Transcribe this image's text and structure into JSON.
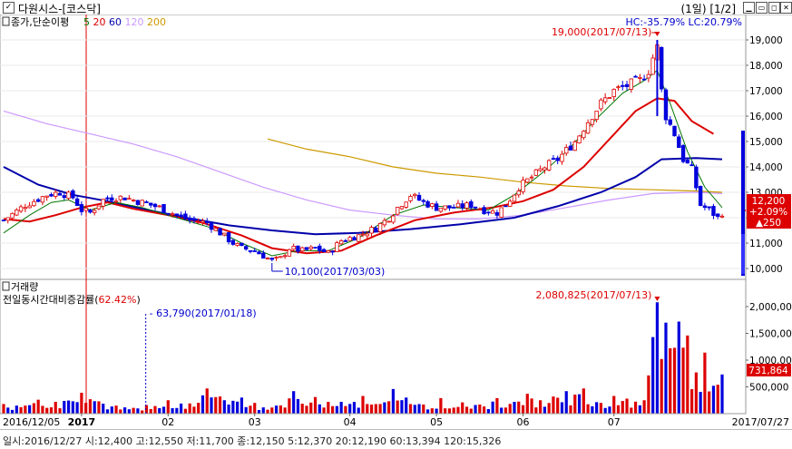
{
  "window": {
    "title": "다원시스-[코스닥]",
    "page_indicator": "(1일) [1/2]",
    "checkbox_mark": "✓"
  },
  "price_panel": {
    "legend_prefix": "종가,단순이평",
    "ma_labels": [
      {
        "text": "5",
        "color": "#007700"
      },
      {
        "text": "20",
        "color": "#dd0000"
      },
      {
        "text": "60",
        "color": "#0000aa"
      },
      {
        "text": "120",
        "color": "#cc99ff"
      },
      {
        "text": "200",
        "color": "#cc9900"
      }
    ],
    "hc_lc": "HC:-35.79%  LC:20.79%",
    "high_annotation": "19,000(2017/07/13)",
    "low_annotation": "10,100(2017/03/03)",
    "last_price": "12,200",
    "last_change_pct": "+2.09%",
    "last_change_amt": "▲250",
    "y_ticks": [
      "19,000",
      "18,000",
      "17,000",
      "16,000",
      "15,000",
      "14,000",
      "13,000",
      "12,000",
      "11,000",
      "10,000"
    ]
  },
  "volume_panel": {
    "title": "거래량",
    "subtitle": "전일동시간대비증감률",
    "subtitle_value": "62.42%",
    "high_annotation": "2,080,825(2017/07/13)",
    "low_annotation": "63,790(2017/01/18)",
    "last_volume": "731,864",
    "y_ticks": [
      "2,000,000",
      "1,500,000",
      "1,000,000",
      "500,000"
    ]
  },
  "x_axis": {
    "start_label": "2016/12/05",
    "end_label": "2017/07/27",
    "ticks": [
      "2017",
      "02",
      "03",
      "04",
      "05",
      "06",
      "07"
    ]
  },
  "status_bar": {
    "text": "일시:2016/12/27 시:12,400 고:12,550 저:11,700 종:12,150 5:12,370 20:12,190 60:13,394 120:15,326"
  },
  "colors": {
    "up": "#dd0000",
    "down": "#0000dd",
    "ma5": "#007700",
    "ma20": "#dd0000",
    "ma60": "#0000aa",
    "ma120": "#cc99ff",
    "ma200": "#cc9900"
  },
  "chart_data": {
    "type": "candlestick",
    "date_range": [
      "2016/12/05",
      "2017/07/27"
    ],
    "price_ylim": [
      10000,
      19000
    ],
    "volume_ylim": [
      0,
      2000000
    ],
    "close_path": [
      [
        0,
        11900
      ],
      [
        5,
        12500
      ],
      [
        10,
        12900
      ],
      [
        13,
        13000
      ],
      [
        16,
        12800
      ],
      [
        18,
        12300
      ],
      [
        20,
        12200
      ],
      [
        23,
        12700
      ],
      [
        25,
        12800
      ],
      [
        28,
        12800
      ],
      [
        32,
        12600
      ],
      [
        36,
        12400
      ],
      [
        40,
        12100
      ],
      [
        43,
        11900
      ],
      [
        47,
        11800
      ],
      [
        50,
        11400
      ],
      [
        53,
        11000
      ],
      [
        55,
        10800
      ],
      [
        58,
        10700
      ],
      [
        60,
        10500
      ],
      [
        62,
        10300
      ],
      [
        64,
        10400
      ],
      [
        66,
        10800
      ],
      [
        69,
        10700
      ],
      [
        72,
        10800
      ],
      [
        75,
        10600
      ],
      [
        78,
        11100
      ],
      [
        82,
        11300
      ],
      [
        86,
        11600
      ],
      [
        89,
        12000
      ],
      [
        91,
        12400
      ],
      [
        94,
        12900
      ],
      [
        97,
        12600
      ],
      [
        100,
        12400
      ],
      [
        104,
        12400
      ],
      [
        108,
        12500
      ],
      [
        111,
        12300
      ],
      [
        114,
        12200
      ],
      [
        116,
        12500
      ],
      [
        119,
        13200
      ],
      [
        122,
        13600
      ],
      [
        125,
        14000
      ],
      [
        128,
        14300
      ],
      [
        132,
        15000
      ],
      [
        135,
        15800
      ],
      [
        138,
        16500
      ],
      [
        141,
        17000
      ],
      [
        144,
        17200
      ],
      [
        147,
        17400
      ],
      [
        149,
        17800
      ],
      [
        150,
        18300
      ],
      [
        151,
        18700
      ],
      [
        152,
        17000
      ],
      [
        153,
        16000
      ],
      [
        155,
        15300
      ],
      [
        157,
        14300
      ],
      [
        159,
        13900
      ],
      [
        161,
        12500
      ],
      [
        163,
        12300
      ],
      [
        165,
        12000
      ],
      [
        166,
        12200
      ]
    ],
    "ma5_path": [
      [
        0,
        11400
      ],
      [
        6,
        12100
      ],
      [
        11,
        12600
      ],
      [
        15,
        12700
      ],
      [
        20,
        12300
      ],
      [
        26,
        12600
      ],
      [
        32,
        12400
      ],
      [
        40,
        12000
      ],
      [
        48,
        11600
      ],
      [
        55,
        11000
      ],
      [
        62,
        10500
      ],
      [
        68,
        10700
      ],
      [
        75,
        10700
      ],
      [
        82,
        11200
      ],
      [
        90,
        12100
      ],
      [
        97,
        12500
      ],
      [
        104,
        12400
      ],
      [
        112,
        12300
      ],
      [
        118,
        12900
      ],
      [
        124,
        13700
      ],
      [
        130,
        14600
      ],
      [
        137,
        15900
      ],
      [
        143,
        16900
      ],
      [
        148,
        17400
      ],
      [
        151,
        17800
      ],
      [
        154,
        16500
      ],
      [
        158,
        14600
      ],
      [
        162,
        13200
      ],
      [
        166,
        12400
      ]
    ],
    "ma20_path": [
      [
        0,
        11950
      ],
      [
        6,
        11850
      ],
      [
        12,
        12100
      ],
      [
        18,
        12400
      ],
      [
        24,
        12600
      ],
      [
        30,
        12350
      ],
      [
        38,
        12100
      ],
      [
        46,
        11800
      ],
      [
        55,
        11300
      ],
      [
        62,
        10800
      ],
      [
        70,
        10600
      ],
      [
        78,
        10700
      ],
      [
        86,
        11300
      ],
      [
        95,
        11900
      ],
      [
        104,
        12200
      ],
      [
        113,
        12400
      ],
      [
        120,
        12650
      ],
      [
        127,
        13100
      ],
      [
        134,
        14000
      ],
      [
        140,
        15100
      ],
      [
        146,
        16200
      ],
      [
        151,
        16700
      ],
      [
        155,
        16600
      ],
      [
        159,
        15800
      ],
      [
        164,
        15300
      ]
    ],
    "ma60_path": [
      [
        0,
        14000
      ],
      [
        8,
        13300
      ],
      [
        16,
        12900
      ],
      [
        24,
        12650
      ],
      [
        32,
        12350
      ],
      [
        42,
        12000
      ],
      [
        52,
        11700
      ],
      [
        62,
        11500
      ],
      [
        72,
        11350
      ],
      [
        82,
        11400
      ],
      [
        94,
        11550
      ],
      [
        106,
        11750
      ],
      [
        118,
        12000
      ],
      [
        128,
        12450
      ],
      [
        138,
        13000
      ],
      [
        146,
        13600
      ],
      [
        152,
        14300
      ],
      [
        160,
        14350
      ],
      [
        166,
        14300
      ]
    ],
    "ma120_path": [
      [
        0,
        16200
      ],
      [
        10,
        15700
      ],
      [
        20,
        15300
      ],
      [
        30,
        14900
      ],
      [
        40,
        14400
      ],
      [
        50,
        13800
      ],
      [
        60,
        13200
      ],
      [
        70,
        12700
      ],
      [
        80,
        12300
      ],
      [
        90,
        12100
      ],
      [
        100,
        11950
      ],
      [
        110,
        11950
      ],
      [
        120,
        12100
      ],
      [
        130,
        12400
      ],
      [
        140,
        12700
      ],
      [
        150,
        12950
      ],
      [
        160,
        13000
      ],
      [
        166,
        12950
      ]
    ],
    "ma200_path": [
      [
        61,
        15100
      ],
      [
        70,
        14700
      ],
      [
        80,
        14400
      ],
      [
        90,
        14000
      ],
      [
        100,
        13750
      ],
      [
        110,
        13600
      ],
      [
        120,
        13400
      ],
      [
        130,
        13250
      ],
      [
        140,
        13150
      ],
      [
        150,
        13100
      ],
      [
        160,
        13050
      ],
      [
        166,
        13000
      ]
    ],
    "high": {
      "index": 151,
      "price": 19000,
      "date": "2017/07/13"
    },
    "low": {
      "index": 62,
      "price": 10100,
      "date": "2017/03/03"
    },
    "last": {
      "close": 12200,
      "change_pct": 2.09,
      "change": 250,
      "volume": 731864
    },
    "volume_peak": {
      "index": 151,
      "volume": 2080825,
      "date": "2017/07/13"
    },
    "volume_low": {
      "index": 32,
      "volume": 63790,
      "date": "2017/01/18"
    },
    "volume_spikes": [
      [
        0,
        180000
      ],
      [
        3,
        150000
      ],
      [
        8,
        260000
      ],
      [
        12,
        220000
      ],
      [
        18,
        390000
      ],
      [
        22,
        230000
      ],
      [
        26,
        150000
      ],
      [
        33,
        160000
      ],
      [
        38,
        250000
      ],
      [
        43,
        190000
      ],
      [
        47,
        470000
      ],
      [
        50,
        320000
      ],
      [
        53,
        240000
      ],
      [
        55,
        300000
      ],
      [
        58,
        200000
      ],
      [
        63,
        150000
      ],
      [
        67,
        420000
      ],
      [
        72,
        310000
      ],
      [
        78,
        220000
      ],
      [
        83,
        330000
      ],
      [
        87,
        180000
      ],
      [
        90,
        460000
      ],
      [
        93,
        300000
      ],
      [
        97,
        170000
      ],
      [
        101,
        290000
      ],
      [
        106,
        210000
      ],
      [
        110,
        170000
      ],
      [
        114,
        290000
      ],
      [
        118,
        220000
      ],
      [
        121,
        370000
      ],
      [
        124,
        250000
      ],
      [
        127,
        320000
      ],
      [
        130,
        420000
      ],
      [
        134,
        470000
      ],
      [
        138,
        200000
      ],
      [
        141,
        330000
      ],
      [
        144,
        280000
      ],
      [
        148,
        250000
      ],
      [
        150,
        1430000
      ],
      [
        151,
        2080825
      ],
      [
        152,
        1020000
      ],
      [
        153,
        1700000
      ],
      [
        155,
        1230000
      ],
      [
        156,
        1720000
      ],
      [
        158,
        1460000
      ],
      [
        160,
        770000
      ],
      [
        162,
        1140000
      ],
      [
        164,
        520000
      ],
      [
        166,
        731864
      ]
    ],
    "x_ticks": [
      {
        "label": "2016/12/05",
        "index": 0
      },
      {
        "label": "2017",
        "index": 18
      },
      {
        "label": "02",
        "index": 38
      },
      {
        "label": "03",
        "index": 58
      },
      {
        "label": "04",
        "index": 80
      },
      {
        "label": "05",
        "index": 100
      },
      {
        "label": "06",
        "index": 120
      },
      {
        "label": "07",
        "index": 141
      },
      {
        "label": "2017/07/27",
        "index": 166
      }
    ]
  }
}
